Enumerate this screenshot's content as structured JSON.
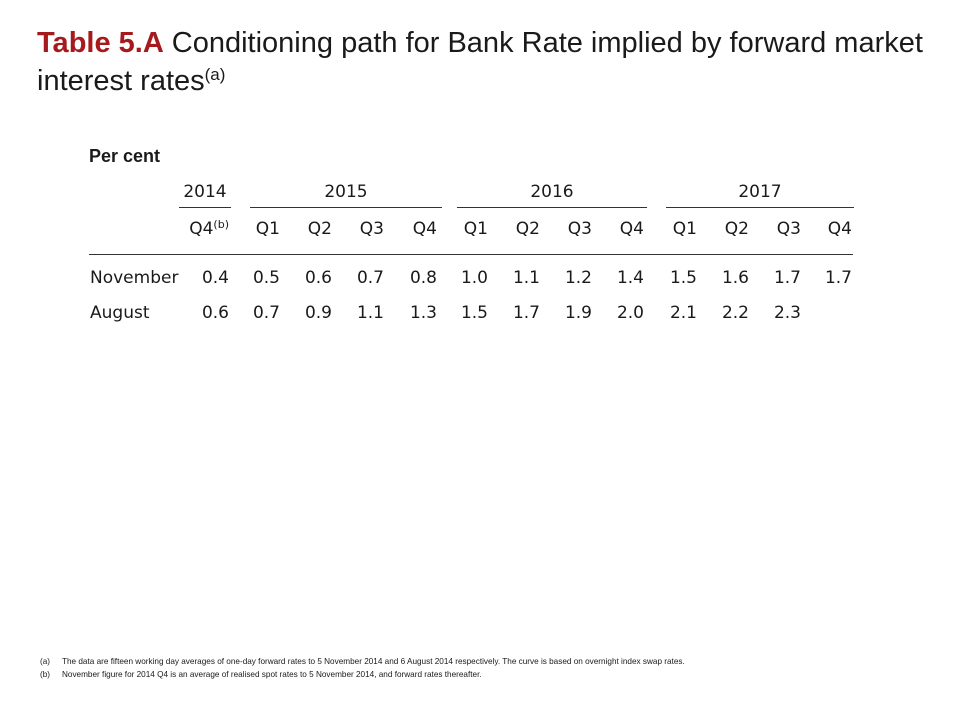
{
  "title": {
    "label": "Table 5.A",
    "text": "Conditioning path for Bank Rate implied by forward market interest rates",
    "note_mark": "(a)"
  },
  "table": {
    "unit": "Per cent",
    "years": [
      "2014",
      "2015",
      "2016",
      "2017"
    ],
    "quarters": [
      "Q4",
      "Q1",
      "Q2",
      "Q3",
      "Q4",
      "Q1",
      "Q2",
      "Q3",
      "Q4",
      "Q1",
      "Q2",
      "Q3",
      "Q4"
    ],
    "first_quarter_note": "(b)",
    "rows": [
      {
        "label": "November",
        "values": [
          "0.4",
          "0.5",
          "0.6",
          "0.7",
          "0.8",
          "1.0",
          "1.1",
          "1.2",
          "1.4",
          "1.5",
          "1.6",
          "1.7",
          "1.7"
        ]
      },
      {
        "label": "August",
        "values": [
          "0.6",
          "0.7",
          "0.9",
          "1.1",
          "1.3",
          "1.5",
          "1.7",
          "1.9",
          "2.0",
          "2.1",
          "2.2",
          "2.3",
          ""
        ]
      }
    ]
  },
  "footnotes": [
    {
      "mark": "(a)",
      "text": "The data are fifteen working day averages of one-day forward rates to 5 November 2014 and 6 August 2014 respectively.  The curve is based on overnight index swap rates."
    },
    {
      "mark": "(b)",
      "text": "November figure for 2014 Q4 is an average of realised spot rates to 5 November 2014, and forward rates thereafter."
    }
  ]
}
